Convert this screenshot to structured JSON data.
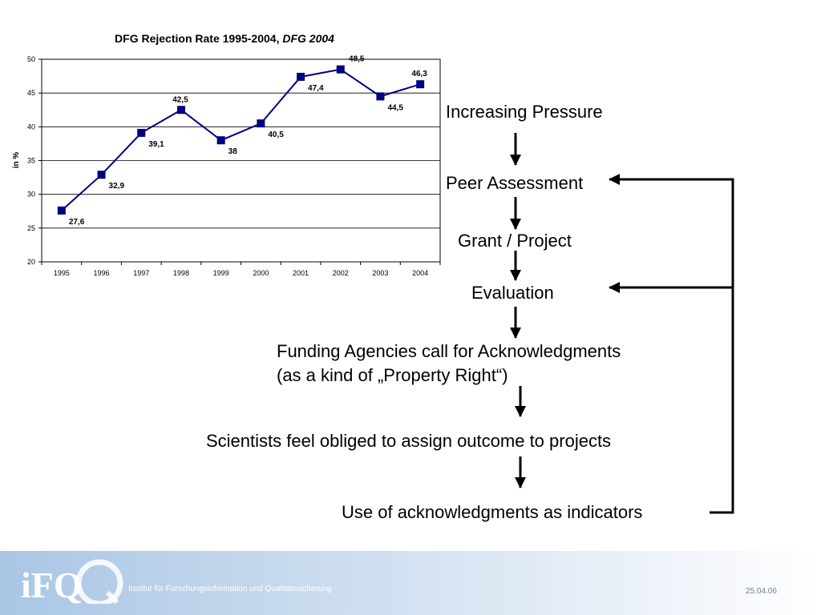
{
  "chart_data": {
    "type": "line",
    "title": "DFG Rejection Rate 1995-2004,",
    "title_italic": "DFG 2004",
    "ylabel": "in %",
    "xlabel": "",
    "categories": [
      "1995",
      "1996",
      "1997",
      "1998",
      "1999",
      "2000",
      "2001",
      "2002",
      "2003",
      "2004"
    ],
    "series": [
      {
        "values": [
          27.6,
          32.9,
          39.1,
          42.5,
          38,
          40.5,
          47.4,
          48.5,
          44.5,
          46.3
        ],
        "labels": [
          "27,6",
          "32,9",
          "39,1",
          "42,5",
          "38",
          "40,5",
          "47,4",
          "48,5",
          "44,5",
          "46,3"
        ]
      }
    ],
    "ylim": [
      20,
      50
    ],
    "yticks": [
      "20",
      "25",
      "30",
      "35",
      "40",
      "45",
      "50"
    ],
    "grid": true,
    "line_color": "#000080",
    "marker_color": "#000080"
  },
  "flow": {
    "increasing_pressure": "Increasing Pressure",
    "peer_assessment": "Peer Assessment",
    "grant_project": "Grant / Project",
    "evaluation": "Evaluation",
    "funding_line1": "Funding Agencies call for Acknowledgments",
    "funding_line2": "(as a kind of „Property Right“)",
    "scientists": "Scientists feel obliged to assign outcome to projects",
    "use_of_ack": "Use of acknowledgments as indicators"
  },
  "footer": {
    "logo_text": "iFQ",
    "institute": "Institut für Forschungsinformation und Qualitätssicherung",
    "date": "25.04.06"
  }
}
